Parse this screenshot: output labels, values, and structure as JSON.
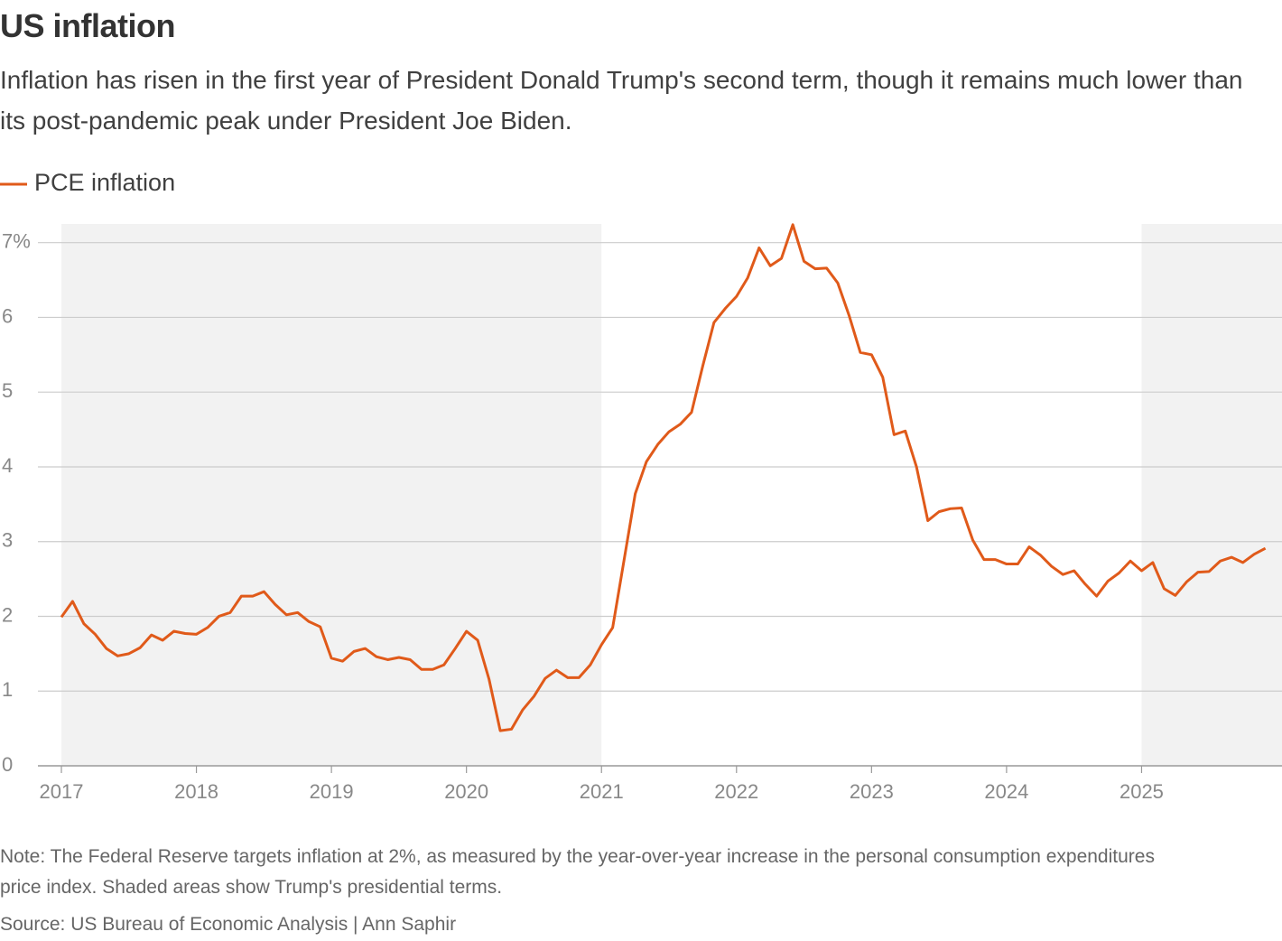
{
  "chart_data": {
    "type": "line",
    "title": "US inflation",
    "subtitle": "Inflation has risen in the first year of President Donald Trump's second term, though it remains much lower than its post-pandemic peak under President Joe Biden.",
    "note": "Note: The Federal Reserve targets inflation at 2%, as measured by the year-over-year increase in the personal consumption expenditures price index. Shaded areas show Trump's presidential terms.",
    "source": "Source: US Bureau of Economic Analysis | Ann Saphir",
    "x": [
      2017,
      2017.083,
      2017.167,
      2017.25,
      2017.333,
      2017.417,
      2017.5,
      2017.583,
      2017.667,
      2017.75,
      2017.833,
      2017.917,
      2018,
      2018.083,
      2018.167,
      2018.25,
      2018.333,
      2018.417,
      2018.5,
      2018.583,
      2018.667,
      2018.75,
      2018.833,
      2018.917,
      2019,
      2019.083,
      2019.167,
      2019.25,
      2019.333,
      2019.417,
      2019.5,
      2019.583,
      2019.667,
      2019.75,
      2019.833,
      2019.917,
      2020,
      2020.083,
      2020.167,
      2020.25,
      2020.333,
      2020.417,
      2020.5,
      2020.583,
      2020.667,
      2020.75,
      2020.833,
      2020.917,
      2021,
      2021.083,
      2021.167,
      2021.25,
      2021.333,
      2021.417,
      2021.5,
      2021.583,
      2021.667,
      2021.75,
      2021.833,
      2021.917,
      2022,
      2022.083,
      2022.167,
      2022.25,
      2022.333,
      2022.417,
      2022.5,
      2022.583,
      2022.667,
      2022.75,
      2022.833,
      2022.917,
      2023,
      2023.083,
      2023.167,
      2023.25,
      2023.333,
      2023.417,
      2023.5,
      2023.583,
      2023.667,
      2023.75,
      2023.833,
      2023.917,
      2024,
      2024.083,
      2024.167,
      2024.25,
      2024.333,
      2024.417,
      2024.5,
      2024.583,
      2024.667,
      2024.75,
      2024.833,
      2024.917,
      2025,
      2025.083,
      2025.167,
      2025.25,
      2025.333,
      2025.417,
      2025.5,
      2025.583,
      2025.667,
      2025.75,
      2025.833,
      2025.917
    ],
    "series": [
      {
        "name": "PCE inflation",
        "color": "#e05a1a",
        "values": [
          1.99,
          2.2,
          1.9,
          1.76,
          1.57,
          1.47,
          1.5,
          1.58,
          1.75,
          1.68,
          1.8,
          1.77,
          1.76,
          1.85,
          2.0,
          2.05,
          2.27,
          2.27,
          2.33,
          2.16,
          2.02,
          2.05,
          1.93,
          1.86,
          1.44,
          1.4,
          1.53,
          1.57,
          1.46,
          1.42,
          1.45,
          1.42,
          1.29,
          1.29,
          1.35,
          1.57,
          1.8,
          1.68,
          1.16,
          0.47,
          0.49,
          0.75,
          0.93,
          1.17,
          1.28,
          1.18,
          1.18,
          1.35,
          1.62,
          1.85,
          2.75,
          3.64,
          4.07,
          4.3,
          4.47,
          4.57,
          4.73,
          5.35,
          5.93,
          6.12,
          6.28,
          6.53,
          6.93,
          6.69,
          6.79,
          7.24,
          6.75,
          6.65,
          6.66,
          6.46,
          6.03,
          5.53,
          5.5,
          5.2,
          4.43,
          4.48,
          4.0,
          3.28,
          3.4,
          3.44,
          3.45,
          3.02,
          2.76,
          2.76,
          2.7,
          2.7,
          2.93,
          2.82,
          2.67,
          2.56,
          2.61,
          2.43,
          2.27,
          2.47,
          2.58,
          2.74,
          2.61,
          2.72,
          2.37,
          2.28,
          2.46,
          2.59,
          2.6,
          2.74,
          2.79,
          2.72,
          2.83,
          2.91
        ]
      }
    ],
    "shaded_periods": [
      [
        2017,
        2021
      ],
      [
        2025,
        2026.04
      ]
    ],
    "shade_color": "#f2f2f2",
    "xlim": [
      2017,
      2026.04
    ],
    "xticks": [
      2017,
      2018,
      2019,
      2020,
      2021,
      2022,
      2023,
      2024,
      2025
    ],
    "ylim": [
      0,
      7.25
    ],
    "yticks": [
      0,
      1,
      2,
      3,
      4,
      5,
      6,
      {
        "value": 7,
        "label": "7%"
      }
    ],
    "grid": true
  }
}
